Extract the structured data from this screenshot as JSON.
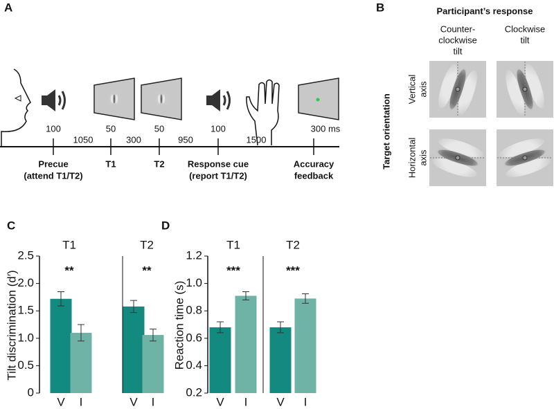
{
  "panel_a": {
    "label": "A",
    "upper_durations": [
      "100",
      "50",
      "50",
      "100",
      "300 ms"
    ],
    "lower_durations": [
      "1050",
      "300",
      "950",
      "1500"
    ],
    "events": [
      [
        "Precue",
        "(attend T1/T2)"
      ],
      [
        "T1"
      ],
      [
        "T2"
      ],
      [
        "Response cue",
        "(report T1/T2)"
      ],
      [
        "Accuracy",
        "feedback"
      ]
    ]
  },
  "panel_b": {
    "label": "B",
    "title": "Participant’s response",
    "columns": [
      [
        "Counter-",
        "clockwise",
        "tilt"
      ],
      [
        "Clockwise",
        "tilt"
      ]
    ],
    "row_title": "Target orientation",
    "rows": [
      [
        "Vertical",
        "axis"
      ],
      [
        "Horizontal",
        "axis"
      ]
    ]
  },
  "chart_data": [
    {
      "type": "bar",
      "panel_label": "C",
      "ylabel": "Tilt discrimination (d′)",
      "ylim": [
        0,
        2.5
      ],
      "yticks": [
        0,
        0.5,
        {
          "value": 1,
          "label": "1.0"
        },
        1.5,
        {
          "value": 2,
          "label": "2.0"
        },
        2.5
      ],
      "categories": [
        "V",
        "I"
      ],
      "colors": [
        "#138a80",
        "#6fb3a6"
      ],
      "groups": [
        {
          "title": "T1",
          "annotation": "**",
          "values": [
            1.72,
            1.1
          ],
          "errors": [
            0.13,
            0.15
          ]
        },
        {
          "title": "T2",
          "annotation": "**",
          "values": [
            1.58,
            1.06
          ],
          "errors": [
            0.11,
            0.11
          ]
        }
      ]
    },
    {
      "type": "bar",
      "panel_label": "D",
      "ylabel": "Reaction time (s)",
      "ylim": [
        0.2,
        1.2
      ],
      "yticks": [
        0.2,
        0.4,
        0.6,
        0.8,
        {
          "value": 1,
          "label": "1.0"
        },
        1.2
      ],
      "categories": [
        "V",
        "I"
      ],
      "colors": [
        "#138a80",
        "#6fb3a6"
      ],
      "groups": [
        {
          "title": "T1",
          "annotation": "***",
          "values": [
            0.68,
            0.91
          ],
          "errors": [
            0.04,
            0.03
          ]
        },
        {
          "title": "T2",
          "annotation": "***",
          "values": [
            0.68,
            0.89
          ],
          "errors": [
            0.04,
            0.035
          ]
        }
      ]
    }
  ]
}
